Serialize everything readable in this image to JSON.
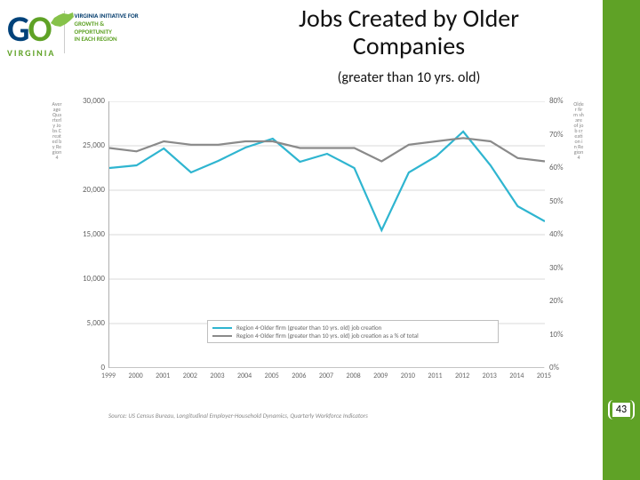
{
  "logo": {
    "g": "G",
    "o": "O",
    "virginia": "VIRGINIA",
    "tag_line1": "VIRGINIA INITIATIVE FOR",
    "tag_line2_a": "GROWTH &",
    "tag_line2_b": "OPPORTUNITY",
    "tag_line3": "IN EACH REGION"
  },
  "title_l1": "Jobs Created by Older",
  "title_l2": "Companies",
  "subtitle": "(greater than 10 yrs. old)",
  "chart": {
    "type": "line-dual-axis",
    "background_color": "#ffffff",
    "grid_color": "#d9d9d9",
    "border_color": "#b0b0b0",
    "x_categories": [
      "1999",
      "2000",
      "2001",
      "2002",
      "2003",
      "2004",
      "2005",
      "2006",
      "2007",
      "2008",
      "2009",
      "2010",
      "2011",
      "2012",
      "2013",
      "2014",
      "2015"
    ],
    "left_axis": {
      "label_vertical": "Average Quarterly Jobs Created by Region 4",
      "min": 0,
      "max": 30000,
      "step": 5000,
      "ticks": [
        "0",
        "5,000",
        "10,000",
        "15,000",
        "20,000",
        "25,000",
        "30,000"
      ],
      "font_size": 9
    },
    "right_axis": {
      "label_vertical": "Older firm share of job creation in Region 4",
      "min": 0,
      "max": 80,
      "step": 10,
      "ticks": [
        "0%",
        "10%",
        "20%",
        "30%",
        "40%",
        "50%",
        "60%",
        "70%",
        "80%"
      ],
      "font_size": 9
    },
    "series": [
      {
        "name": "Region 4-Older firm (greater than 10 yrs. old) job creation",
        "axis": "left",
        "color": "#2fb5d0",
        "width": 2.2,
        "values": [
          22500,
          22800,
          24700,
          22000,
          23300,
          24800,
          25800,
          23200,
          24100,
          22500,
          15500,
          22000,
          23800,
          26600,
          22800,
          18200,
          16500
        ]
      },
      {
        "name": "Region 4-Older firm (greater than 10 yrs. old) job creation as a % of total",
        "axis": "right",
        "color": "#8a8a8a",
        "width": 2.2,
        "values": [
          66,
          65,
          68,
          67,
          67,
          68,
          68,
          66,
          66,
          66,
          62,
          67,
          68,
          69,
          68,
          63,
          62
        ]
      }
    ],
    "legend": {
      "border_color": "#bfbfbf",
      "font_size": 7
    },
    "source": "Source: US Census Bureau, Longitudinal Employer-Household Dynamics, Quarterly Workforce Indicators"
  },
  "colors": {
    "brand_green": "#5fa226",
    "brand_blue": "#00427a"
  },
  "page_number": "43"
}
